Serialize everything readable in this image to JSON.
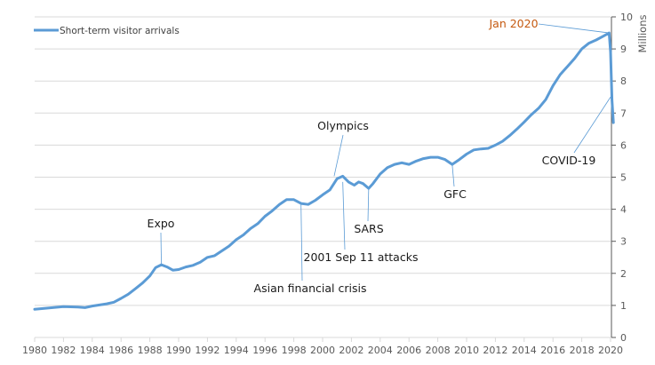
{
  "chart_data": {
    "type": "line",
    "title": "",
    "xlabel": "",
    "ylabel": "Millions",
    "ylabel_position": "right",
    "xlim": [
      1980,
      2020
    ],
    "ylim": [
      0,
      10
    ],
    "grid": "horizontal",
    "legend": {
      "position": "top-left",
      "entries": [
        "Short-term visitor arrivals"
      ]
    },
    "x_ticks": [
      "1980",
      "1982",
      "1984",
      "1986",
      "1988",
      "1990",
      "1992",
      "1994",
      "1996",
      "1998",
      "2000",
      "2002",
      "2004",
      "2006",
      "2008",
      "2010",
      "2012",
      "2014",
      "2016",
      "2018",
      "2020"
    ],
    "y_ticks": [
      "0",
      "1",
      "2",
      "3",
      "4",
      "5",
      "6",
      "7",
      "8",
      "9",
      "10"
    ],
    "series": [
      {
        "name": "Short-term visitor arrivals",
        "color": "#5b9bd5",
        "x": [
          1980.0,
          1981.0,
          1982.0,
          1983.0,
          1983.5,
          1984.0,
          1985.0,
          1985.5,
          1986.0,
          1986.5,
          1987.0,
          1987.5,
          1988.0,
          1988.4,
          1988.8,
          1989.2,
          1989.6,
          1990.0,
          1990.5,
          1991.0,
          1991.5,
          1992.0,
          1992.5,
          1993.0,
          1993.5,
          1994.0,
          1994.5,
          1995.0,
          1995.5,
          1996.0,
          1996.5,
          1997.0,
          1997.5,
          1998.0,
          1998.5,
          1999.0,
          1999.5,
          2000.0,
          2000.5,
          2001.0,
          2001.4,
          2001.8,
          2002.2,
          2002.5,
          2002.8,
          2003.2,
          2003.5,
          2004.0,
          2004.5,
          2005.0,
          2005.5,
          2006.0,
          2006.5,
          2007.0,
          2007.5,
          2008.0,
          2008.5,
          2009.0,
          2009.5,
          2010.0,
          2010.5,
          2011.0,
          2011.5,
          2012.0,
          2012.5,
          2013.0,
          2013.5,
          2014.0,
          2014.5,
          2015.0,
          2015.5,
          2016.0,
          2016.5,
          2017.0,
          2017.5,
          2018.0,
          2018.5,
          2019.0,
          2019.5,
          2019.9,
          2020.0,
          2020.1,
          2020.2
        ],
        "values": [
          0.88,
          0.92,
          0.96,
          0.95,
          0.93,
          0.98,
          1.05,
          1.1,
          1.22,
          1.35,
          1.52,
          1.7,
          1.92,
          2.18,
          2.27,
          2.2,
          2.1,
          2.12,
          2.2,
          2.25,
          2.35,
          2.5,
          2.55,
          2.7,
          2.85,
          3.05,
          3.2,
          3.4,
          3.55,
          3.78,
          3.95,
          4.15,
          4.3,
          4.3,
          4.18,
          4.15,
          4.28,
          4.45,
          4.6,
          4.95,
          5.03,
          4.85,
          4.75,
          4.85,
          4.8,
          4.65,
          4.8,
          5.1,
          5.3,
          5.4,
          5.45,
          5.4,
          5.5,
          5.58,
          5.62,
          5.62,
          5.55,
          5.4,
          5.55,
          5.72,
          5.85,
          5.88,
          5.9,
          6.0,
          6.12,
          6.3,
          6.5,
          6.72,
          6.95,
          7.15,
          7.42,
          7.85,
          8.2,
          8.45,
          8.7,
          9.0,
          9.18,
          9.28,
          9.4,
          9.5,
          8.9,
          7.4,
          6.7
        ]
      }
    ],
    "annotations": [
      {
        "text": "Expo",
        "x": 1988.8,
        "y": 2.27,
        "color": "#1a1a1a"
      },
      {
        "text": "Asian financial crisis",
        "x": 1998.5,
        "y": 4.15,
        "color": "#1a1a1a"
      },
      {
        "text": "Olympics",
        "x": 2000.8,
        "y": 5.03,
        "color": "#1a1a1a"
      },
      {
        "text": "2001 Sep 11 attacks",
        "x": 2001.4,
        "y": 4.85,
        "color": "#1a1a1a"
      },
      {
        "text": "SARS",
        "x": 2003.2,
        "y": 4.65,
        "color": "#1a1a1a"
      },
      {
        "text": "GFC",
        "x": 2009.0,
        "y": 5.4,
        "color": "#1a1a1a"
      },
      {
        "text": "Jan 2020",
        "x": 2019.9,
        "y": 9.5,
        "color": "#c55a11"
      },
      {
        "text": "COVID-19",
        "x": 2020.0,
        "y": 7.5,
        "color": "#1a1a1a"
      }
    ]
  },
  "legend": {
    "label": "Short-term visitor arrivals"
  },
  "axis": {
    "y_title": "Millions"
  },
  "annotations": {
    "expo": "Expo",
    "asian_crisis": "Asian financial crisis",
    "olympics": "Olympics",
    "sep11": "2001 Sep 11 attacks",
    "sars": "SARS",
    "gfc": "GFC",
    "jan2020": "Jan 2020",
    "covid": "COVID-19"
  },
  "colors": {
    "line": "#5b9bd5",
    "grid": "#d9d9d9",
    "axis": "#595959",
    "highlight": "#c55a11"
  }
}
